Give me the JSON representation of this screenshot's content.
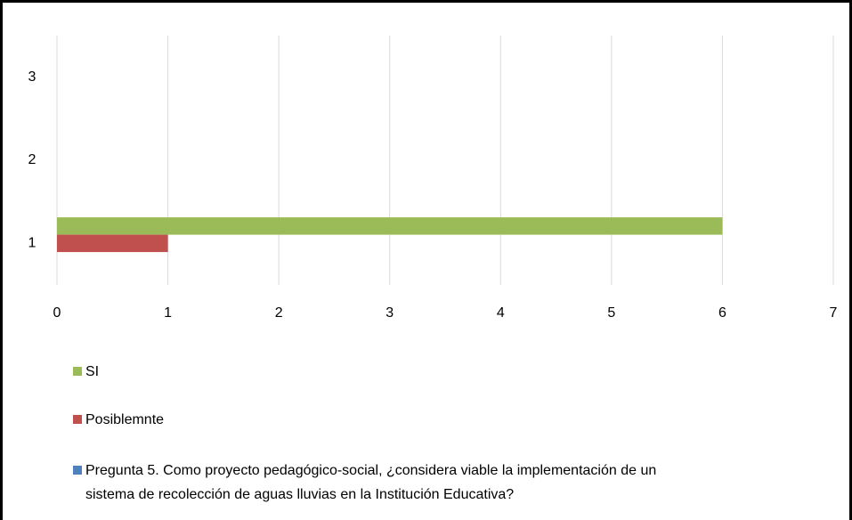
{
  "chart_data": {
    "type": "hbar",
    "categories": [
      "1",
      "2",
      "3"
    ],
    "series": [
      {
        "name": "SI",
        "color": "#9bbb59",
        "values": [
          6,
          null,
          null
        ]
      },
      {
        "name": "Posiblemnte",
        "color": "#c0504d",
        "values": [
          1,
          null,
          null
        ]
      },
      {
        "name": "Pregunta 5. Como proyecto pedagógico-social, ¿considera viable la implementación de un sistema de recolección de aguas lluvias en la Institución Educativa?",
        "color": "#4f81bd",
        "values": [
          null,
          null,
          null
        ]
      }
    ],
    "xlim": [
      0,
      7
    ],
    "xticks": [
      0,
      1,
      2,
      3,
      4,
      5,
      6,
      7
    ],
    "grid": true,
    "legend": "bottom"
  }
}
